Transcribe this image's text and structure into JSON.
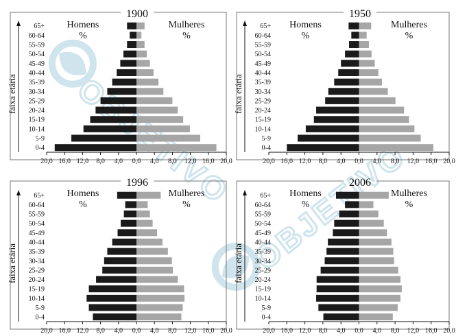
{
  "colors": {
    "men": "#1a1a1a",
    "women": "#a6a6a6",
    "frame": "#777777",
    "watermark": "#a9cfe0"
  },
  "watermark": {
    "text": "OBJETIVO",
    "style": "diagonal repeated logo"
  },
  "chart_data": [
    {
      "type": "bar",
      "orientation": "population-pyramid",
      "title": "1900",
      "ylabel": "faixa etária",
      "men_label": [
        "Homens",
        "%"
      ],
      "women_label": [
        "Mulheres",
        "%"
      ],
      "categories": [
        "0-4",
        "5-9",
        "10-14",
        "15-19",
        "20-24",
        "25-29",
        "30-34",
        "35-39",
        "40-44",
        "45-49",
        "50-54",
        "55-59",
        "60-64",
        "65+"
      ],
      "xlim": [
        -20,
        20
      ],
      "x_ticks": [
        "20,0",
        "16,0",
        "12,0",
        "8,0",
        "4,0",
        "0,0",
        "4,0",
        "8,0",
        "12,0",
        "16,0",
        "20,0"
      ],
      "series": [
        {
          "name": "Homens",
          "values": [
            18.2,
            14.5,
            11.8,
            10.3,
            9.1,
            8.0,
            6.5,
            5.4,
            4.4,
            3.6,
            2.9,
            2.1,
            1.5,
            2.1
          ]
        },
        {
          "name": "Mulheres",
          "values": [
            17.8,
            14.2,
            11.9,
            10.4,
            9.2,
            8.0,
            6.0,
            4.9,
            3.8,
            3.0,
            2.3,
            1.8,
            1.1,
            1.8
          ]
        }
      ]
    },
    {
      "type": "bar",
      "orientation": "population-pyramid",
      "title": "1950",
      "ylabel": "faixa etária",
      "men_label": [
        "Homens",
        "%"
      ],
      "women_label": [
        "Mulheres",
        "%"
      ],
      "categories": [
        "0-4",
        "5-9",
        "10-14",
        "15-19",
        "20-24",
        "25-29",
        "30-34",
        "35-39",
        "40-44",
        "45-49",
        "50-54",
        "55-59",
        "60-64",
        "65+"
      ],
      "xlim": [
        -20,
        20
      ],
      "x_ticks": [
        "20,0",
        "16,0",
        "12,0",
        "8,0",
        "4,0",
        "0,0",
        "4,0",
        "8,0",
        "12,0",
        "16,0",
        "20,0"
      ],
      "series": [
        {
          "name": "Homens",
          "values": [
            16.0,
            13.6,
            11.8,
            10.0,
            9.5,
            7.5,
            6.8,
            5.5,
            4.6,
            4.0,
            3.1,
            2.2,
            1.7,
            2.3
          ]
        },
        {
          "name": "Mulheres",
          "values": [
            16.5,
            13.7,
            12.3,
            11.1,
            10.0,
            8.1,
            6.4,
            5.1,
            4.3,
            3.5,
            2.8,
            2.2,
            1.7,
            2.7
          ]
        }
      ]
    },
    {
      "type": "bar",
      "orientation": "population-pyramid",
      "title": "1996",
      "ylabel": "faixa etária",
      "men_label": [
        "Homens",
        "%"
      ],
      "women_label": [
        "Mulheres",
        "%"
      ],
      "categories": [
        "0-4",
        "5-9",
        "10-14",
        "15-19",
        "20-24",
        "25-29",
        "30-34",
        "35-39",
        "40-44",
        "45-49",
        "50-54",
        "55-59",
        "60-64",
        "65+"
      ],
      "xlim": [
        -20,
        20
      ],
      "x_ticks": [
        "20,0",
        "16,0",
        "12,0",
        "8,0",
        "4,0",
        "0,0",
        "4,0",
        "8,0",
        "12,0",
        "16,0",
        "20,0"
      ],
      "series": [
        {
          "name": "Homens",
          "values": [
            9.7,
            10.6,
            11.1,
            10.6,
            9.0,
            7.6,
            7.2,
            6.5,
            5.4,
            4.2,
            3.5,
            2.8,
            2.5,
            4.3
          ]
        },
        {
          "name": "Mulheres",
          "values": [
            10.0,
            10.3,
            10.7,
            10.6,
            9.2,
            8.1,
            7.9,
            7.0,
            5.8,
            4.6,
            3.6,
            3.0,
            2.5,
            5.4
          ]
        }
      ]
    },
    {
      "type": "bar",
      "orientation": "population-pyramid",
      "title": "2006",
      "ylabel": "faixa etária",
      "men_label": [
        "Homens",
        "%"
      ],
      "women_label": [
        "Mulheres",
        "%"
      ],
      "categories": [
        "0-4",
        "5-9",
        "10-14",
        "15-19",
        "20-24",
        "25-29",
        "30-34",
        "35-39",
        "40-44",
        "45-49",
        "50-54",
        "55-59",
        "60-64",
        "65+"
      ],
      "xlim": [
        -20,
        20
      ],
      "x_ticks": [
        "20,0",
        "16,0",
        "12,0",
        "8,0",
        "4,0",
        "0,0",
        "4,0",
        "8,0",
        "12,0",
        "16,0",
        "20,0"
      ],
      "series": [
        {
          "name": "Homens",
          "values": [
            7.9,
            9.0,
            9.5,
            9.4,
            9.4,
            8.5,
            7.6,
            7.2,
            6.9,
            5.8,
            5.5,
            4.4,
            3.1,
            5.1
          ]
        },
        {
          "name": "Mulheres",
          "values": [
            7.5,
            8.6,
            9.2,
            9.5,
            9.2,
            8.7,
            7.8,
            7.6,
            7.2,
            6.2,
            5.5,
            4.3,
            3.2,
            6.6
          ]
        }
      ]
    }
  ]
}
